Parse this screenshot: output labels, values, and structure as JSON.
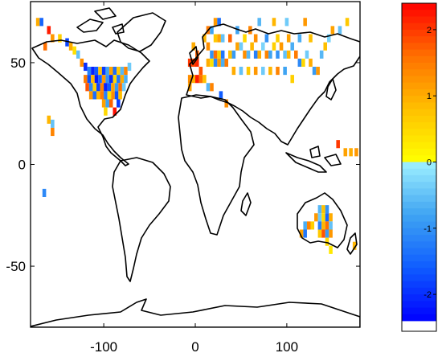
{
  "map": {
    "x_axis": {
      "range": [
        -180,
        180
      ],
      "ticks": [
        {
          "value": -100,
          "label": "-100"
        },
        {
          "value": 0,
          "label": "0"
        },
        {
          "value": 100,
          "label": "100"
        }
      ]
    },
    "y_axis": {
      "range": [
        -80,
        80
      ],
      "ticks": [
        {
          "value": 50,
          "label": "50"
        },
        {
          "value": 0,
          "label": "0"
        },
        {
          "value": -50,
          "label": "-50"
        }
      ]
    },
    "cell_size_deg": 4,
    "cells": [
      {
        "lon": -172,
        "lat": 70,
        "v": 1.0
      },
      {
        "lon": -168,
        "lat": 70,
        "v": -1.5
      },
      {
        "lon": -160,
        "lat": 66,
        "v": 2.2
      },
      {
        "lon": -156,
        "lat": 62,
        "v": 1.2
      },
      {
        "lon": -164,
        "lat": 58,
        "v": 1.6
      },
      {
        "lon": -148,
        "lat": 62,
        "v": 0.6
      },
      {
        "lon": -140,
        "lat": 60,
        "v": -1.8
      },
      {
        "lon": -136,
        "lat": 58,
        "v": 1.0
      },
      {
        "lon": -132,
        "lat": 56,
        "v": 0.4
      },
      {
        "lon": -128,
        "lat": 54,
        "v": -0.5
      },
      {
        "lon": -124,
        "lat": 50,
        "v": 1.3
      },
      {
        "lon": -120,
        "lat": 48,
        "v": -2.0
      },
      {
        "lon": -116,
        "lat": 46,
        "v": -1.2
      },
      {
        "lon": -112,
        "lat": 46,
        "v": -2.1
      },
      {
        "lon": -108,
        "lat": 46,
        "v": -1.6
      },
      {
        "lon": -104,
        "lat": 46,
        "v": 0.8
      },
      {
        "lon": -100,
        "lat": 46,
        "v": -1.9
      },
      {
        "lon": -96,
        "lat": 46,
        "v": -0.8
      },
      {
        "lon": -92,
        "lat": 46,
        "v": 1.1
      },
      {
        "lon": -88,
        "lat": 46,
        "v": -1.4
      },
      {
        "lon": -84,
        "lat": 46,
        "v": 0.7
      },
      {
        "lon": -80,
        "lat": 46,
        "v": -0.6
      },
      {
        "lon": -76,
        "lat": 46,
        "v": 1.4
      },
      {
        "lon": -72,
        "lat": 48,
        "v": -0.4
      },
      {
        "lon": -120,
        "lat": 42,
        "v": 1.5
      },
      {
        "lon": -116,
        "lat": 42,
        "v": -1.7
      },
      {
        "lon": -112,
        "lat": 42,
        "v": 0.9
      },
      {
        "lon": -108,
        "lat": 42,
        "v": -2.2
      },
      {
        "lon": -104,
        "lat": 42,
        "v": -1.5
      },
      {
        "lon": -100,
        "lat": 42,
        "v": 1.2
      },
      {
        "lon": -96,
        "lat": 42,
        "v": -1.0
      },
      {
        "lon": -92,
        "lat": 42,
        "v": -2.0
      },
      {
        "lon": -88,
        "lat": 42,
        "v": 0.5
      },
      {
        "lon": -84,
        "lat": 42,
        "v": -1.3
      },
      {
        "lon": -80,
        "lat": 42,
        "v": 1.0
      },
      {
        "lon": -76,
        "lat": 42,
        "v": -0.7
      },
      {
        "lon": -118,
        "lat": 38,
        "v": 1.8
      },
      {
        "lon": -114,
        "lat": 38,
        "v": -1.1
      },
      {
        "lon": -110,
        "lat": 38,
        "v": 0.6
      },
      {
        "lon": -106,
        "lat": 38,
        "v": -1.8
      },
      {
        "lon": -102,
        "lat": 38,
        "v": 1.4
      },
      {
        "lon": -98,
        "lat": 38,
        "v": -2.1
      },
      {
        "lon": -94,
        "lat": 38,
        "v": -1.6
      },
      {
        "lon": -90,
        "lat": 38,
        "v": 1.1
      },
      {
        "lon": -86,
        "lat": 38,
        "v": -0.9
      },
      {
        "lon": -82,
        "lat": 38,
        "v": 1.6
      },
      {
        "lon": -78,
        "lat": 38,
        "v": -0.4
      },
      {
        "lon": -114,
        "lat": 34,
        "v": 1.2
      },
      {
        "lon": -110,
        "lat": 34,
        "v": -1.4
      },
      {
        "lon": -106,
        "lat": 34,
        "v": 0.9
      },
      {
        "lon": -102,
        "lat": 34,
        "v": 1.5
      },
      {
        "lon": -98,
        "lat": 34,
        "v": -1.2
      },
      {
        "lon": -94,
        "lat": 34,
        "v": 0.4
      },
      {
        "lon": -90,
        "lat": 34,
        "v": 1.3
      },
      {
        "lon": -86,
        "lat": 34,
        "v": -1.7
      },
      {
        "lon": -82,
        "lat": 34,
        "v": 0.8
      },
      {
        "lon": -100,
        "lat": 30,
        "v": 1.1
      },
      {
        "lon": -96,
        "lat": 30,
        "v": -0.8
      },
      {
        "lon": -92,
        "lat": 30,
        "v": 1.7
      },
      {
        "lon": -84,
        "lat": 30,
        "v": -1.9
      },
      {
        "lon": -88,
        "lat": 26,
        "v": 2.3
      },
      {
        "lon": -98,
        "lat": 26,
        "v": 0.5
      },
      {
        "lon": -160,
        "lat": 22,
        "v": 0.9
      },
      {
        "lon": -156,
        "lat": 20,
        "v": -0.5
      },
      {
        "lon": -156,
        "lat": 16,
        "v": 1.4
      },
      {
        "lon": -165,
        "lat": -14,
        "v": -1.1
      },
      {
        "lon": -2,
        "lat": 58,
        "v": 1.0
      },
      {
        "lon": 2,
        "lat": 54,
        "v": 1.7
      },
      {
        "lon": -6,
        "lat": 50,
        "v": 2.0
      },
      {
        "lon": -2,
        "lat": 50,
        "v": 1.9
      },
      {
        "lon": 2,
        "lat": 50,
        "v": 2.1
      },
      {
        "lon": 6,
        "lat": 46,
        "v": 1.8
      },
      {
        "lon": -6,
        "lat": 42,
        "v": 1.3
      },
      {
        "lon": -2,
        "lat": 42,
        "v": 1.0
      },
      {
        "lon": 2,
        "lat": 42,
        "v": 2.2
      },
      {
        "lon": 6,
        "lat": 42,
        "v": 1.6
      },
      {
        "lon": 10,
        "lat": 42,
        "v": 0.8
      },
      {
        "lon": -6,
        "lat": 38,
        "v": 1.1
      },
      {
        "lon": 14,
        "lat": 38,
        "v": -0.6
      },
      {
        "lon": 18,
        "lat": 38,
        "v": 1.4
      },
      {
        "lon": 10,
        "lat": 62,
        "v": 0.9
      },
      {
        "lon": 14,
        "lat": 66,
        "v": 1.5
      },
      {
        "lon": 18,
        "lat": 66,
        "v": -0.8
      },
      {
        "lon": 22,
        "lat": 70,
        "v": 1.2
      },
      {
        "lon": 26,
        "lat": 70,
        "v": -1.4
      },
      {
        "lon": 22,
        "lat": 62,
        "v": 0.7
      },
      {
        "lon": 26,
        "lat": 62,
        "v": 1.1
      },
      {
        "lon": 30,
        "lat": 62,
        "v": -0.5
      },
      {
        "lon": 14,
        "lat": 58,
        "v": 1.3
      },
      {
        "lon": 18,
        "lat": 54,
        "v": -1.0
      },
      {
        "lon": 22,
        "lat": 54,
        "v": 1.6
      },
      {
        "lon": 26,
        "lat": 54,
        "v": 0.6
      },
      {
        "lon": 30,
        "lat": 54,
        "v": -1.3
      },
      {
        "lon": 14,
        "lat": 50,
        "v": 1.0
      },
      {
        "lon": 18,
        "lat": 50,
        "v": 0.4
      },
      {
        "lon": 22,
        "lat": 50,
        "v": -1.1
      },
      {
        "lon": 26,
        "lat": 50,
        "v": 1.2
      },
      {
        "lon": 30,
        "lat": 50,
        "v": -0.7
      },
      {
        "lon": 34,
        "lat": 50,
        "v": 1.5
      },
      {
        "lon": 38,
        "lat": 54,
        "v": 0.8
      },
      {
        "lon": 42,
        "lat": 54,
        "v": -0.9
      },
      {
        "lon": 46,
        "lat": 58,
        "v": 1.1
      },
      {
        "lon": 50,
        "lat": 58,
        "v": -0.4
      },
      {
        "lon": 54,
        "lat": 54,
        "v": 1.3
      },
      {
        "lon": 58,
        "lat": 54,
        "v": -0.6
      },
      {
        "lon": 62,
        "lat": 58,
        "v": 0.9
      },
      {
        "lon": 66,
        "lat": 54,
        "v": -1.2
      },
      {
        "lon": 70,
        "lat": 54,
        "v": 1.0
      },
      {
        "lon": 74,
        "lat": 58,
        "v": -0.3
      },
      {
        "lon": 78,
        "lat": 54,
        "v": 1.4
      },
      {
        "lon": 82,
        "lat": 54,
        "v": -0.8
      },
      {
        "lon": 86,
        "lat": 58,
        "v": 0.6
      },
      {
        "lon": 90,
        "lat": 54,
        "v": -1.0
      },
      {
        "lon": 94,
        "lat": 58,
        "v": 1.2
      },
      {
        "lon": 98,
        "lat": 54,
        "v": -0.5
      },
      {
        "lon": 102,
        "lat": 54,
        "v": 0.9
      },
      {
        "lon": 106,
        "lat": 58,
        "v": -0.7
      },
      {
        "lon": 110,
        "lat": 54,
        "v": 1.5
      },
      {
        "lon": 114,
        "lat": 50,
        "v": -1.1
      },
      {
        "lon": 118,
        "lat": 50,
        "v": 0.5
      },
      {
        "lon": 122,
        "lat": 54,
        "v": -0.4
      },
      {
        "lon": 126,
        "lat": 50,
        "v": 1.0
      },
      {
        "lon": 130,
        "lat": 46,
        "v": -0.9
      },
      {
        "lon": 134,
        "lat": 46,
        "v": 1.2
      },
      {
        "lon": 138,
        "lat": 54,
        "v": -0.6
      },
      {
        "lon": 142,
        "lat": 58,
        "v": 0.8
      },
      {
        "lon": 146,
        "lat": 62,
        "v": -0.3
      },
      {
        "lon": 150,
        "lat": 66,
        "v": 1.1
      },
      {
        "lon": 158,
        "lat": 66,
        "v": -0.5
      },
      {
        "lon": 166,
        "lat": 70,
        "v": 0.7
      },
      {
        "lon": 60,
        "lat": 66,
        "v": 1.4
      },
      {
        "lon": 70,
        "lat": 70,
        "v": -0.6
      },
      {
        "lon": 86,
        "lat": 70,
        "v": 0.9
      },
      {
        "lon": 100,
        "lat": 70,
        "v": -0.4
      },
      {
        "lon": 120,
        "lat": 70,
        "v": 1.2
      },
      {
        "lon": 38,
        "lat": 62,
        "v": 1.7
      },
      {
        "lon": 46,
        "lat": 66,
        "v": -0.8
      },
      {
        "lon": 54,
        "lat": 62,
        "v": 0.5
      },
      {
        "lon": 66,
        "lat": 62,
        "v": 1.3
      },
      {
        "lon": 78,
        "lat": 62,
        "v": -1.0
      },
      {
        "lon": 90,
        "lat": 62,
        "v": 0.6
      },
      {
        "lon": 102,
        "lat": 62,
        "v": 1.1
      },
      {
        "lon": 114,
        "lat": 62,
        "v": -0.7
      },
      {
        "lon": 126,
        "lat": 62,
        "v": 0.8
      },
      {
        "lon": 42,
        "lat": 46,
        "v": 1.0
      },
      {
        "lon": 50,
        "lat": 46,
        "v": -0.5
      },
      {
        "lon": 58,
        "lat": 46,
        "v": 0.7
      },
      {
        "lon": 66,
        "lat": 46,
        "v": 1.2
      },
      {
        "lon": 74,
        "lat": 46,
        "v": -0.4
      },
      {
        "lon": 82,
        "lat": 46,
        "v": 0.9
      },
      {
        "lon": 90,
        "lat": 46,
        "v": 1.4
      },
      {
        "lon": 98,
        "lat": 46,
        "v": -0.8
      },
      {
        "lon": 106,
        "lat": 42,
        "v": 0.6
      },
      {
        "lon": 28,
        "lat": 34,
        "v": -1.6
      },
      {
        "lon": 34,
        "lat": 30,
        "v": 1.3
      },
      {
        "lon": 156,
        "lat": 10,
        "v": 2.0
      },
      {
        "lon": 164,
        "lat": 6,
        "v": 1.1
      },
      {
        "lon": 170,
        "lat": 6,
        "v": 1.0
      },
      {
        "lon": 176,
        "lat": 6,
        "v": 1.2
      },
      {
        "lon": 136,
        "lat": -22,
        "v": -0.6
      },
      {
        "lon": 140,
        "lat": -22,
        "v": 0.8
      },
      {
        "lon": 144,
        "lat": -22,
        "v": -1.0
      },
      {
        "lon": 132,
        "lat": -26,
        "v": 1.2
      },
      {
        "lon": 136,
        "lat": -26,
        "v": -0.4
      },
      {
        "lon": 140,
        "lat": -26,
        "v": 0.5
      },
      {
        "lon": 144,
        "lat": -26,
        "v": -1.5
      },
      {
        "lon": 148,
        "lat": -26,
        "v": 1.0
      },
      {
        "lon": 120,
        "lat": -30,
        "v": -0.7
      },
      {
        "lon": 124,
        "lat": -30,
        "v": 1.4
      },
      {
        "lon": 128,
        "lat": -30,
        "v": 0.6
      },
      {
        "lon": 136,
        "lat": -30,
        "v": -1.2
      },
      {
        "lon": 140,
        "lat": -30,
        "v": 0.9
      },
      {
        "lon": 144,
        "lat": -30,
        "v": 1.6
      },
      {
        "lon": 148,
        "lat": -30,
        "v": -0.5
      },
      {
        "lon": 116,
        "lat": -34,
        "v": 1.1
      },
      {
        "lon": 120,
        "lat": -34,
        "v": -1.3
      },
      {
        "lon": 136,
        "lat": -34,
        "v": 0.7
      },
      {
        "lon": 140,
        "lat": -34,
        "v": 1.8
      },
      {
        "lon": 144,
        "lat": -34,
        "v": -0.9
      },
      {
        "lon": 148,
        "lat": -34,
        "v": 1.2
      },
      {
        "lon": 144,
        "lat": -38,
        "v": 0.5
      },
      {
        "lon": 148,
        "lat": -42,
        "v": 0.3
      },
      {
        "lon": 174,
        "lat": -40,
        "v": 0.9
      }
    ],
    "colorbar": {
      "range": [
        -2.4,
        2.4
      ],
      "ticks": [
        {
          "value": 2,
          "label": "2"
        },
        {
          "value": 1,
          "label": "1"
        },
        {
          "value": 0,
          "label": "0"
        },
        {
          "value": -1,
          "label": "-1"
        },
        {
          "value": -2,
          "label": "-2"
        }
      ],
      "stops": [
        {
          "v": -2.4,
          "color": "#0000ff"
        },
        {
          "v": -1.6,
          "color": "#0f5cff"
        },
        {
          "v": -0.8,
          "color": "#3fa4f2"
        },
        {
          "v": 0.0,
          "color": "#9ff1ff"
        },
        {
          "v": 0.01,
          "color": "#ffff00"
        },
        {
          "v": 0.8,
          "color": "#ffc000"
        },
        {
          "v": 1.6,
          "color": "#ff7000"
        },
        {
          "v": 2.4,
          "color": "#ff0000"
        }
      ]
    }
  }
}
